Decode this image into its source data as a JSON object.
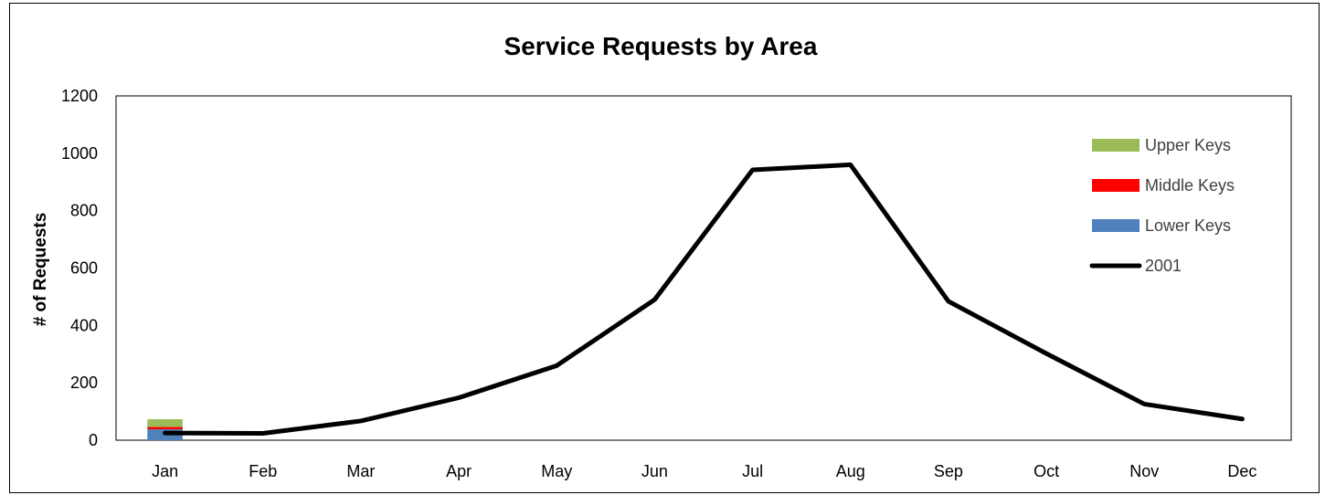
{
  "chart_data": {
    "type": "bar+line",
    "title": "Service Requests by Area",
    "xlabel": "",
    "ylabel": "# of Requests",
    "ylim": [
      0,
      1200
    ],
    "yticks": [
      0,
      200,
      400,
      600,
      800,
      1000,
      1200
    ],
    "categories": [
      "Jan",
      "Feb",
      "Mar",
      "Apr",
      "May",
      "Jun",
      "Jul",
      "Aug",
      "Sep",
      "Oct",
      "Nov",
      "Dec"
    ],
    "stacked_bars": [
      {
        "name": "Lower Keys",
        "color": "#4F81BD",
        "values": [
          38,
          null,
          null,
          null,
          null,
          null,
          null,
          null,
          null,
          null,
          null,
          null
        ]
      },
      {
        "name": "Middle Keys",
        "color": "#FF0000",
        "values": [
          8,
          null,
          null,
          null,
          null,
          null,
          null,
          null,
          null,
          null,
          null,
          null
        ]
      },
      {
        "name": "Upper Keys",
        "color": "#9BBB59",
        "values": [
          27,
          null,
          null,
          null,
          null,
          null,
          null,
          null,
          null,
          null,
          null,
          null
        ]
      }
    ],
    "line_series": [
      {
        "name": "2001",
        "color": "#000000",
        "values": [
          25,
          24,
          67,
          148,
          260,
          490,
          942,
          960,
          484,
          302,
          126,
          74
        ]
      }
    ],
    "legend": {
      "position": "top-right",
      "entries": [
        {
          "label": "Upper Keys",
          "color": "#9BBB59",
          "kind": "bar"
        },
        {
          "label": "Middle Keys",
          "color": "#FF0000",
          "kind": "bar"
        },
        {
          "label": "Lower Keys",
          "color": "#4F81BD",
          "kind": "bar"
        },
        {
          "label": "2001",
          "color": "#000000",
          "kind": "line"
        }
      ]
    },
    "grid": false
  }
}
